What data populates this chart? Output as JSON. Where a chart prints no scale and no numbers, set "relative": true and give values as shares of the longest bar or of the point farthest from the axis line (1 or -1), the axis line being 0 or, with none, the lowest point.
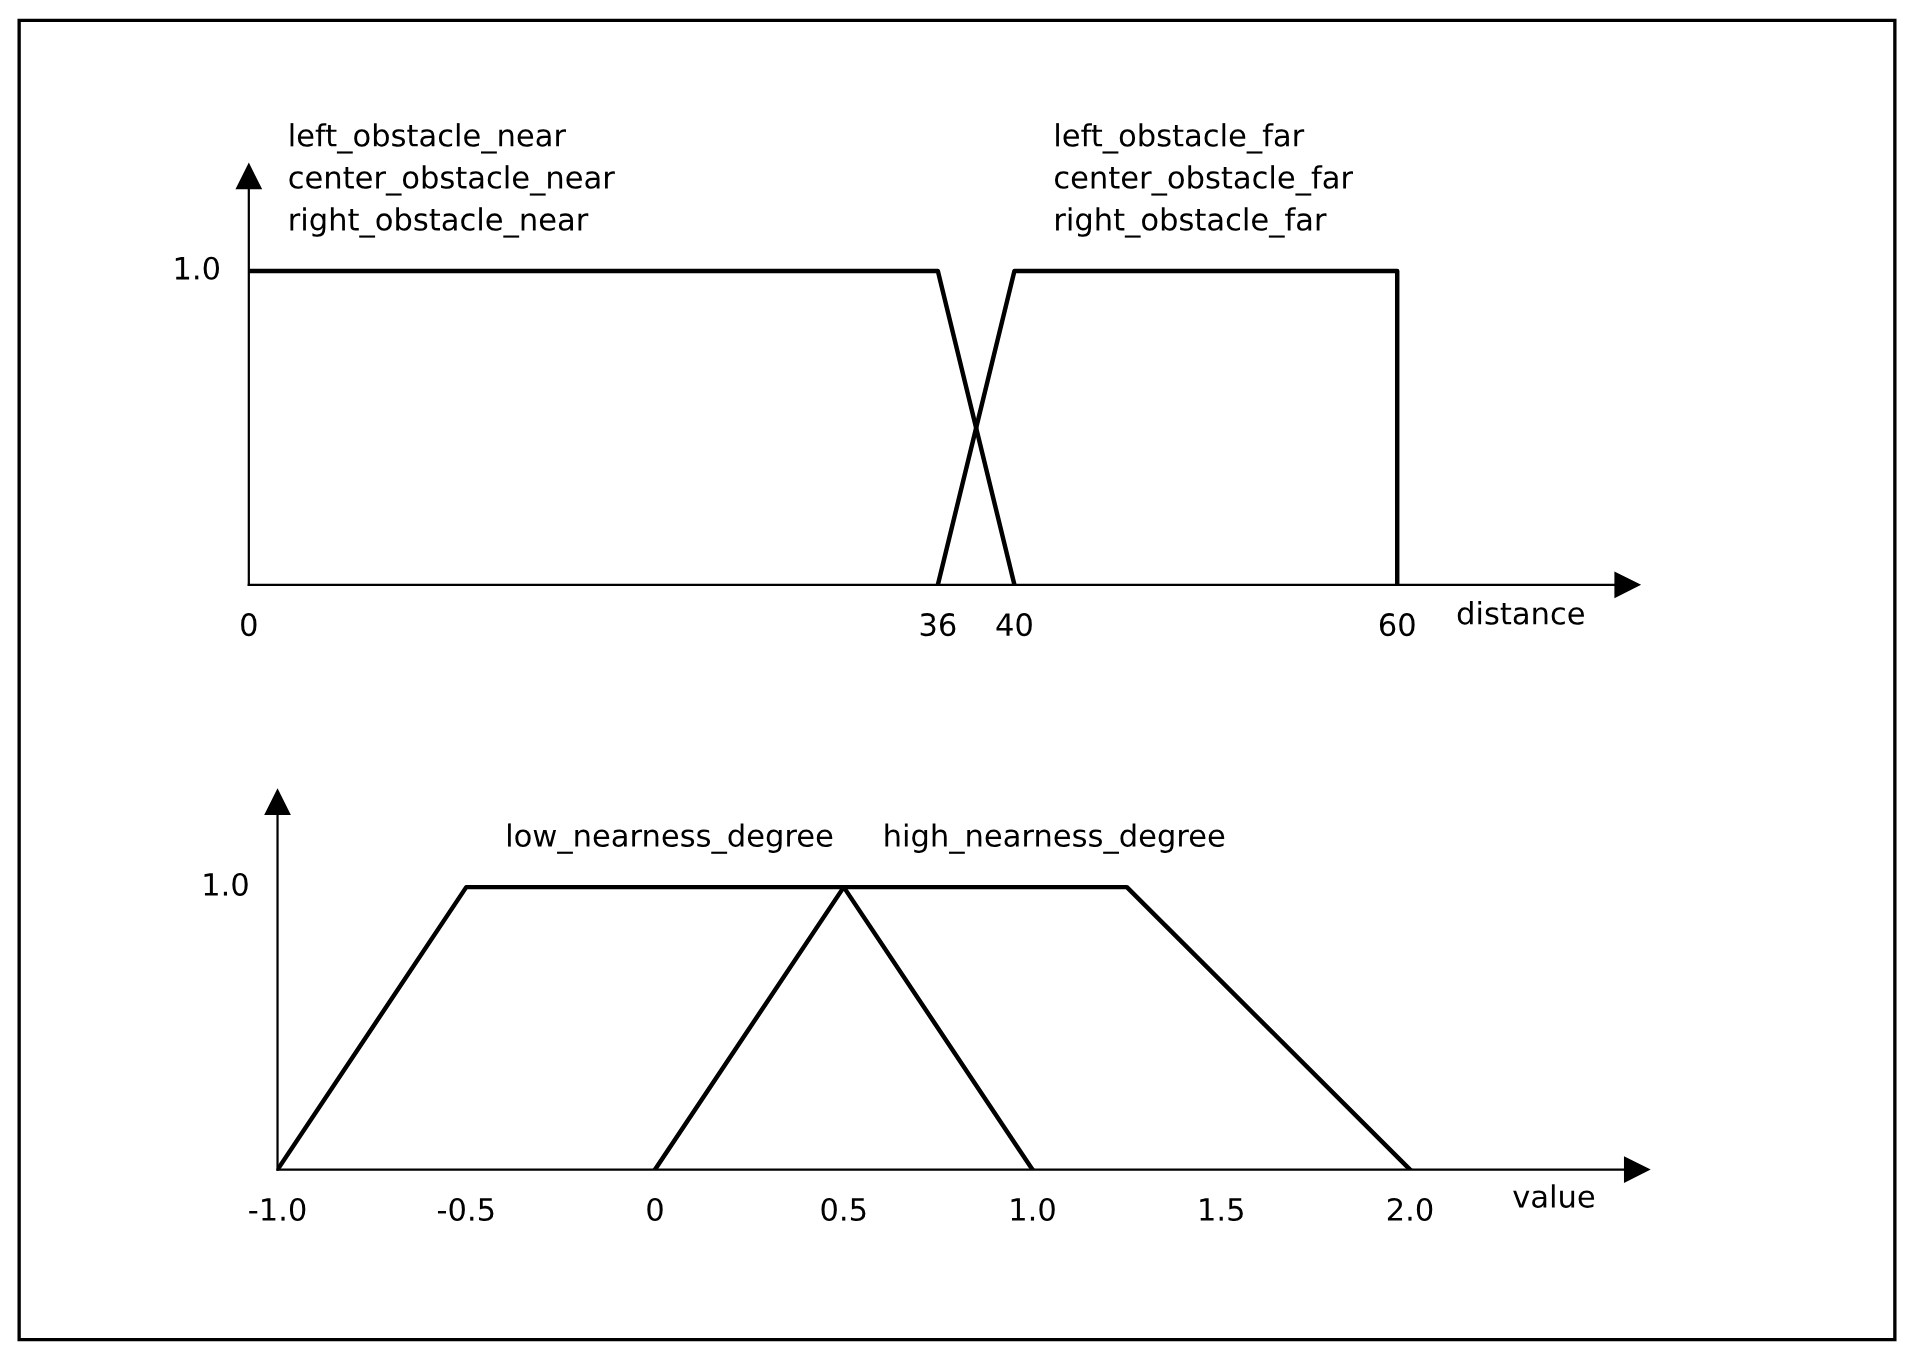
{
  "chart_data": [
    {
      "type": "line",
      "xlabel": "distance",
      "xlim": [
        0,
        72
      ],
      "xticks": [
        0,
        36,
        40,
        60
      ],
      "relative": true,
      "annotations": [
        "1.0"
      ],
      "line_style": "solid",
      "grid": false,
      "series": [
        {
          "name": "left_obstacle_near\ncenter_obstacle_near\nright_obstacle_near",
          "color": "#000000",
          "x": [
            0,
            36,
            40
          ],
          "values": [
            1,
            1,
            0
          ]
        },
        {
          "name": "left_obstacle_far\ncenter_obstacle_far\nright_obstacle_far",
          "color": "#000000",
          "x": [
            36,
            40,
            60,
            60
          ],
          "values": [
            0,
            1,
            1,
            0
          ]
        }
      ]
    },
    {
      "type": "line",
      "xlabel": "value",
      "xlim": [
        -1.0,
        2.6
      ],
      "xticks": [
        {
          "value": -1,
          "label": "-1.0"
        },
        -0.5,
        0,
        0.5,
        {
          "value": 1,
          "label": "1.0"
        },
        1.5,
        {
          "value": 2,
          "label": "2.0"
        }
      ],
      "relative": true,
      "annotations": [
        "1.0"
      ],
      "line_style": "solid",
      "grid": false,
      "series": [
        {
          "name": "low_nearness_degree",
          "color": "#000000",
          "x": [
            -1.0,
            -0.5,
            0.5,
            1.0
          ],
          "values": [
            0,
            1,
            1,
            0
          ]
        },
        {
          "name": "high_nearness_degree",
          "color": "#000000",
          "x": [
            0,
            0.5,
            1.25,
            2.0
          ],
          "values": [
            0,
            1,
            1,
            0
          ]
        }
      ]
    }
  ]
}
